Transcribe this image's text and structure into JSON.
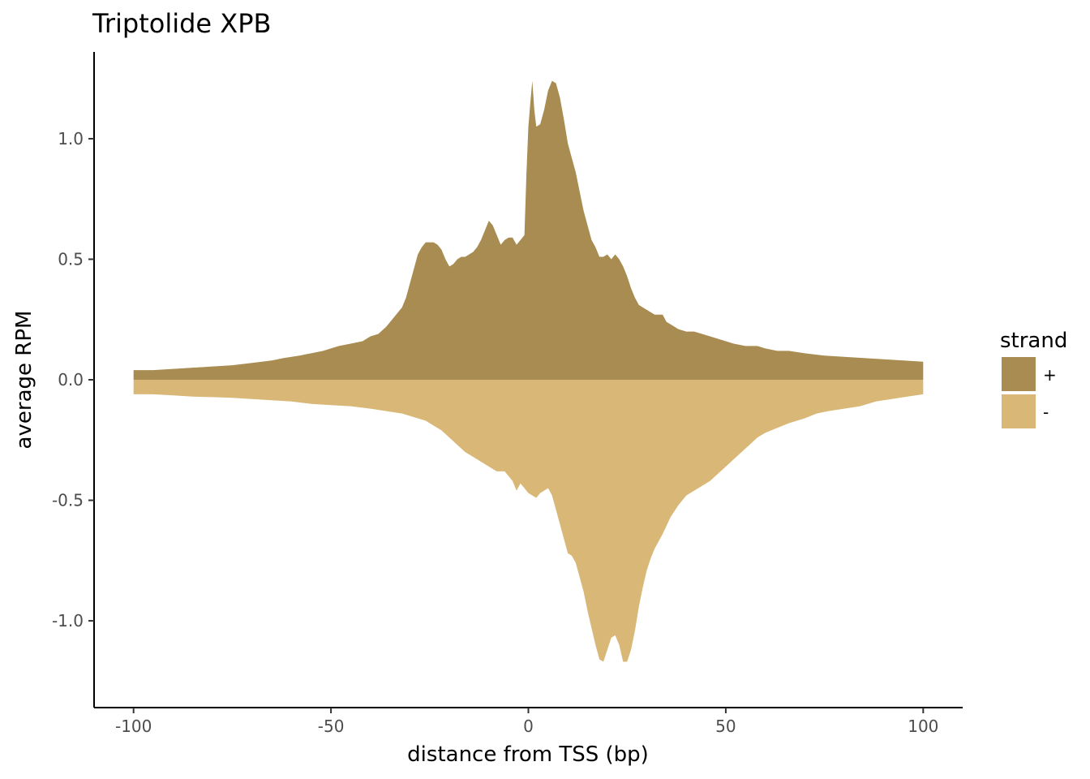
{
  "chart_data": {
    "type": "area",
    "title": "Triptolide XPB",
    "xlabel": "distance from TSS (bp)",
    "ylabel": "average RPM",
    "xlim": [
      -110,
      110
    ],
    "ylim": [
      -1.36,
      1.36
    ],
    "x_ticks": [
      -100,
      -50,
      0,
      50,
      100
    ],
    "x_tick_labels": [
      "-100",
      "-50",
      "0",
      "50",
      "100"
    ],
    "y_ticks": [
      -1.0,
      -0.5,
      0.0,
      0.5,
      1.0
    ],
    "y_tick_labels": [
      "-1.0",
      "-0.5",
      "0.0",
      "0.5",
      "1.0"
    ],
    "grid": false,
    "legend": {
      "title": "strand",
      "position": "right"
    },
    "series": [
      {
        "name": "+",
        "color": "#a88c51",
        "points": [
          [
            -100,
            0.04
          ],
          [
            -95,
            0.04
          ],
          [
            -90,
            0.045
          ],
          [
            -85,
            0.05
          ],
          [
            -80,
            0.055
          ],
          [
            -75,
            0.06
          ],
          [
            -70,
            0.07
          ],
          [
            -65,
            0.08
          ],
          [
            -62,
            0.09
          ],
          [
            -58,
            0.1
          ],
          [
            -55,
            0.11
          ],
          [
            -52,
            0.12
          ],
          [
            -50,
            0.13
          ],
          [
            -48,
            0.14
          ],
          [
            -45,
            0.15
          ],
          [
            -42,
            0.16
          ],
          [
            -40,
            0.18
          ],
          [
            -38,
            0.19
          ],
          [
            -36,
            0.22
          ],
          [
            -34,
            0.26
          ],
          [
            -32,
            0.3
          ],
          [
            -31,
            0.34
          ],
          [
            -30,
            0.4
          ],
          [
            -29,
            0.46
          ],
          [
            -28,
            0.52
          ],
          [
            -27,
            0.55
          ],
          [
            -26,
            0.57
          ],
          [
            -25,
            0.57
          ],
          [
            -24,
            0.57
          ],
          [
            -23,
            0.56
          ],
          [
            -22,
            0.54
          ],
          [
            -21,
            0.5
          ],
          [
            -20,
            0.47
          ],
          [
            -19,
            0.48
          ],
          [
            -18,
            0.5
          ],
          [
            -17,
            0.51
          ],
          [
            -16,
            0.51
          ],
          [
            -15,
            0.52
          ],
          [
            -14,
            0.53
          ],
          [
            -13,
            0.55
          ],
          [
            -12,
            0.58
          ],
          [
            -11,
            0.62
          ],
          [
            -10,
            0.66
          ],
          [
            -9,
            0.64
          ],
          [
            -8,
            0.6
          ],
          [
            -7,
            0.56
          ],
          [
            -6,
            0.58
          ],
          [
            -5,
            0.59
          ],
          [
            -4,
            0.59
          ],
          [
            -3,
            0.56
          ],
          [
            -2,
            0.58
          ],
          [
            -1,
            0.6
          ],
          [
            -0.5,
            0.85
          ],
          [
            0,
            1.05
          ],
          [
            0.5,
            1.15
          ],
          [
            1,
            1.24
          ],
          [
            1.5,
            1.12
          ],
          [
            2,
            1.05
          ],
          [
            3,
            1.06
          ],
          [
            4,
            1.12
          ],
          [
            5,
            1.2
          ],
          [
            6,
            1.24
          ],
          [
            7,
            1.23
          ],
          [
            8,
            1.17
          ],
          [
            9,
            1.08
          ],
          [
            10,
            0.98
          ],
          [
            11,
            0.92
          ],
          [
            12,
            0.86
          ],
          [
            13,
            0.78
          ],
          [
            14,
            0.7
          ],
          [
            15,
            0.64
          ],
          [
            16,
            0.58
          ],
          [
            17,
            0.55
          ],
          [
            18,
            0.51
          ],
          [
            19,
            0.51
          ],
          [
            20,
            0.52
          ],
          [
            21,
            0.5
          ],
          [
            22,
            0.52
          ],
          [
            23,
            0.5
          ],
          [
            24,
            0.47
          ],
          [
            25,
            0.43
          ],
          [
            26,
            0.38
          ],
          [
            27,
            0.34
          ],
          [
            28,
            0.31
          ],
          [
            30,
            0.29
          ],
          [
            32,
            0.27
          ],
          [
            34,
            0.27
          ],
          [
            35,
            0.24
          ],
          [
            36,
            0.23
          ],
          [
            38,
            0.21
          ],
          [
            40,
            0.2
          ],
          [
            42,
            0.2
          ],
          [
            44,
            0.19
          ],
          [
            46,
            0.18
          ],
          [
            48,
            0.17
          ],
          [
            50,
            0.16
          ],
          [
            52,
            0.15
          ],
          [
            55,
            0.14
          ],
          [
            58,
            0.14
          ],
          [
            60,
            0.13
          ],
          [
            63,
            0.12
          ],
          [
            66,
            0.12
          ],
          [
            70,
            0.11
          ],
          [
            75,
            0.1
          ],
          [
            80,
            0.095
          ],
          [
            85,
            0.09
          ],
          [
            90,
            0.085
          ],
          [
            95,
            0.08
          ],
          [
            100,
            0.075
          ]
        ]
      },
      {
        "name": "-",
        "color": "#d9b777",
        "points": [
          [
            -100,
            -0.06
          ],
          [
            -95,
            -0.06
          ],
          [
            -90,
            -0.065
          ],
          [
            -85,
            -0.07
          ],
          [
            -80,
            -0.072
          ],
          [
            -75,
            -0.075
          ],
          [
            -70,
            -0.08
          ],
          [
            -65,
            -0.085
          ],
          [
            -60,
            -0.09
          ],
          [
            -55,
            -0.1
          ],
          [
            -50,
            -0.105
          ],
          [
            -45,
            -0.11
          ],
          [
            -40,
            -0.12
          ],
          [
            -36,
            -0.13
          ],
          [
            -32,
            -0.14
          ],
          [
            -30,
            -0.15
          ],
          [
            -28,
            -0.16
          ],
          [
            -26,
            -0.17
          ],
          [
            -24,
            -0.19
          ],
          [
            -22,
            -0.21
          ],
          [
            -20,
            -0.24
          ],
          [
            -18,
            -0.27
          ],
          [
            -16,
            -0.3
          ],
          [
            -14,
            -0.32
          ],
          [
            -12,
            -0.34
          ],
          [
            -10,
            -0.36
          ],
          [
            -8,
            -0.38
          ],
          [
            -6,
            -0.38
          ],
          [
            -4,
            -0.42
          ],
          [
            -3,
            -0.46
          ],
          [
            -2,
            -0.43
          ],
          [
            -1,
            -0.45
          ],
          [
            0,
            -0.47
          ],
          [
            1,
            -0.48
          ],
          [
            2,
            -0.49
          ],
          [
            3,
            -0.47
          ],
          [
            4,
            -0.46
          ],
          [
            5,
            -0.45
          ],
          [
            6,
            -0.48
          ],
          [
            7,
            -0.54
          ],
          [
            8,
            -0.6
          ],
          [
            9,
            -0.66
          ],
          [
            10,
            -0.72
          ],
          [
            11,
            -0.73
          ],
          [
            12,
            -0.76
          ],
          [
            13,
            -0.82
          ],
          [
            14,
            -0.88
          ],
          [
            15,
            -0.96
          ],
          [
            16,
            -1.03
          ],
          [
            17,
            -1.1
          ],
          [
            18,
            -1.16
          ],
          [
            19,
            -1.17
          ],
          [
            20,
            -1.12
          ],
          [
            21,
            -1.07
          ],
          [
            22,
            -1.06
          ],
          [
            23,
            -1.1
          ],
          [
            24,
            -1.17
          ],
          [
            25,
            -1.17
          ],
          [
            26,
            -1.12
          ],
          [
            27,
            -1.04
          ],
          [
            28,
            -0.94
          ],
          [
            29,
            -0.86
          ],
          [
            30,
            -0.79
          ],
          [
            31,
            -0.74
          ],
          [
            32,
            -0.7
          ],
          [
            34,
            -0.64
          ],
          [
            36,
            -0.57
          ],
          [
            38,
            -0.52
          ],
          [
            40,
            -0.48
          ],
          [
            42,
            -0.46
          ],
          [
            44,
            -0.44
          ],
          [
            46,
            -0.42
          ],
          [
            48,
            -0.39
          ],
          [
            50,
            -0.36
          ],
          [
            52,
            -0.33
          ],
          [
            54,
            -0.3
          ],
          [
            56,
            -0.27
          ],
          [
            58,
            -0.24
          ],
          [
            60,
            -0.22
          ],
          [
            63,
            -0.2
          ],
          [
            66,
            -0.18
          ],
          [
            70,
            -0.16
          ],
          [
            73,
            -0.14
          ],
          [
            76,
            -0.13
          ],
          [
            80,
            -0.12
          ],
          [
            84,
            -0.11
          ],
          [
            88,
            -0.09
          ],
          [
            92,
            -0.08
          ],
          [
            96,
            -0.07
          ],
          [
            100,
            -0.06
          ]
        ]
      }
    ]
  }
}
